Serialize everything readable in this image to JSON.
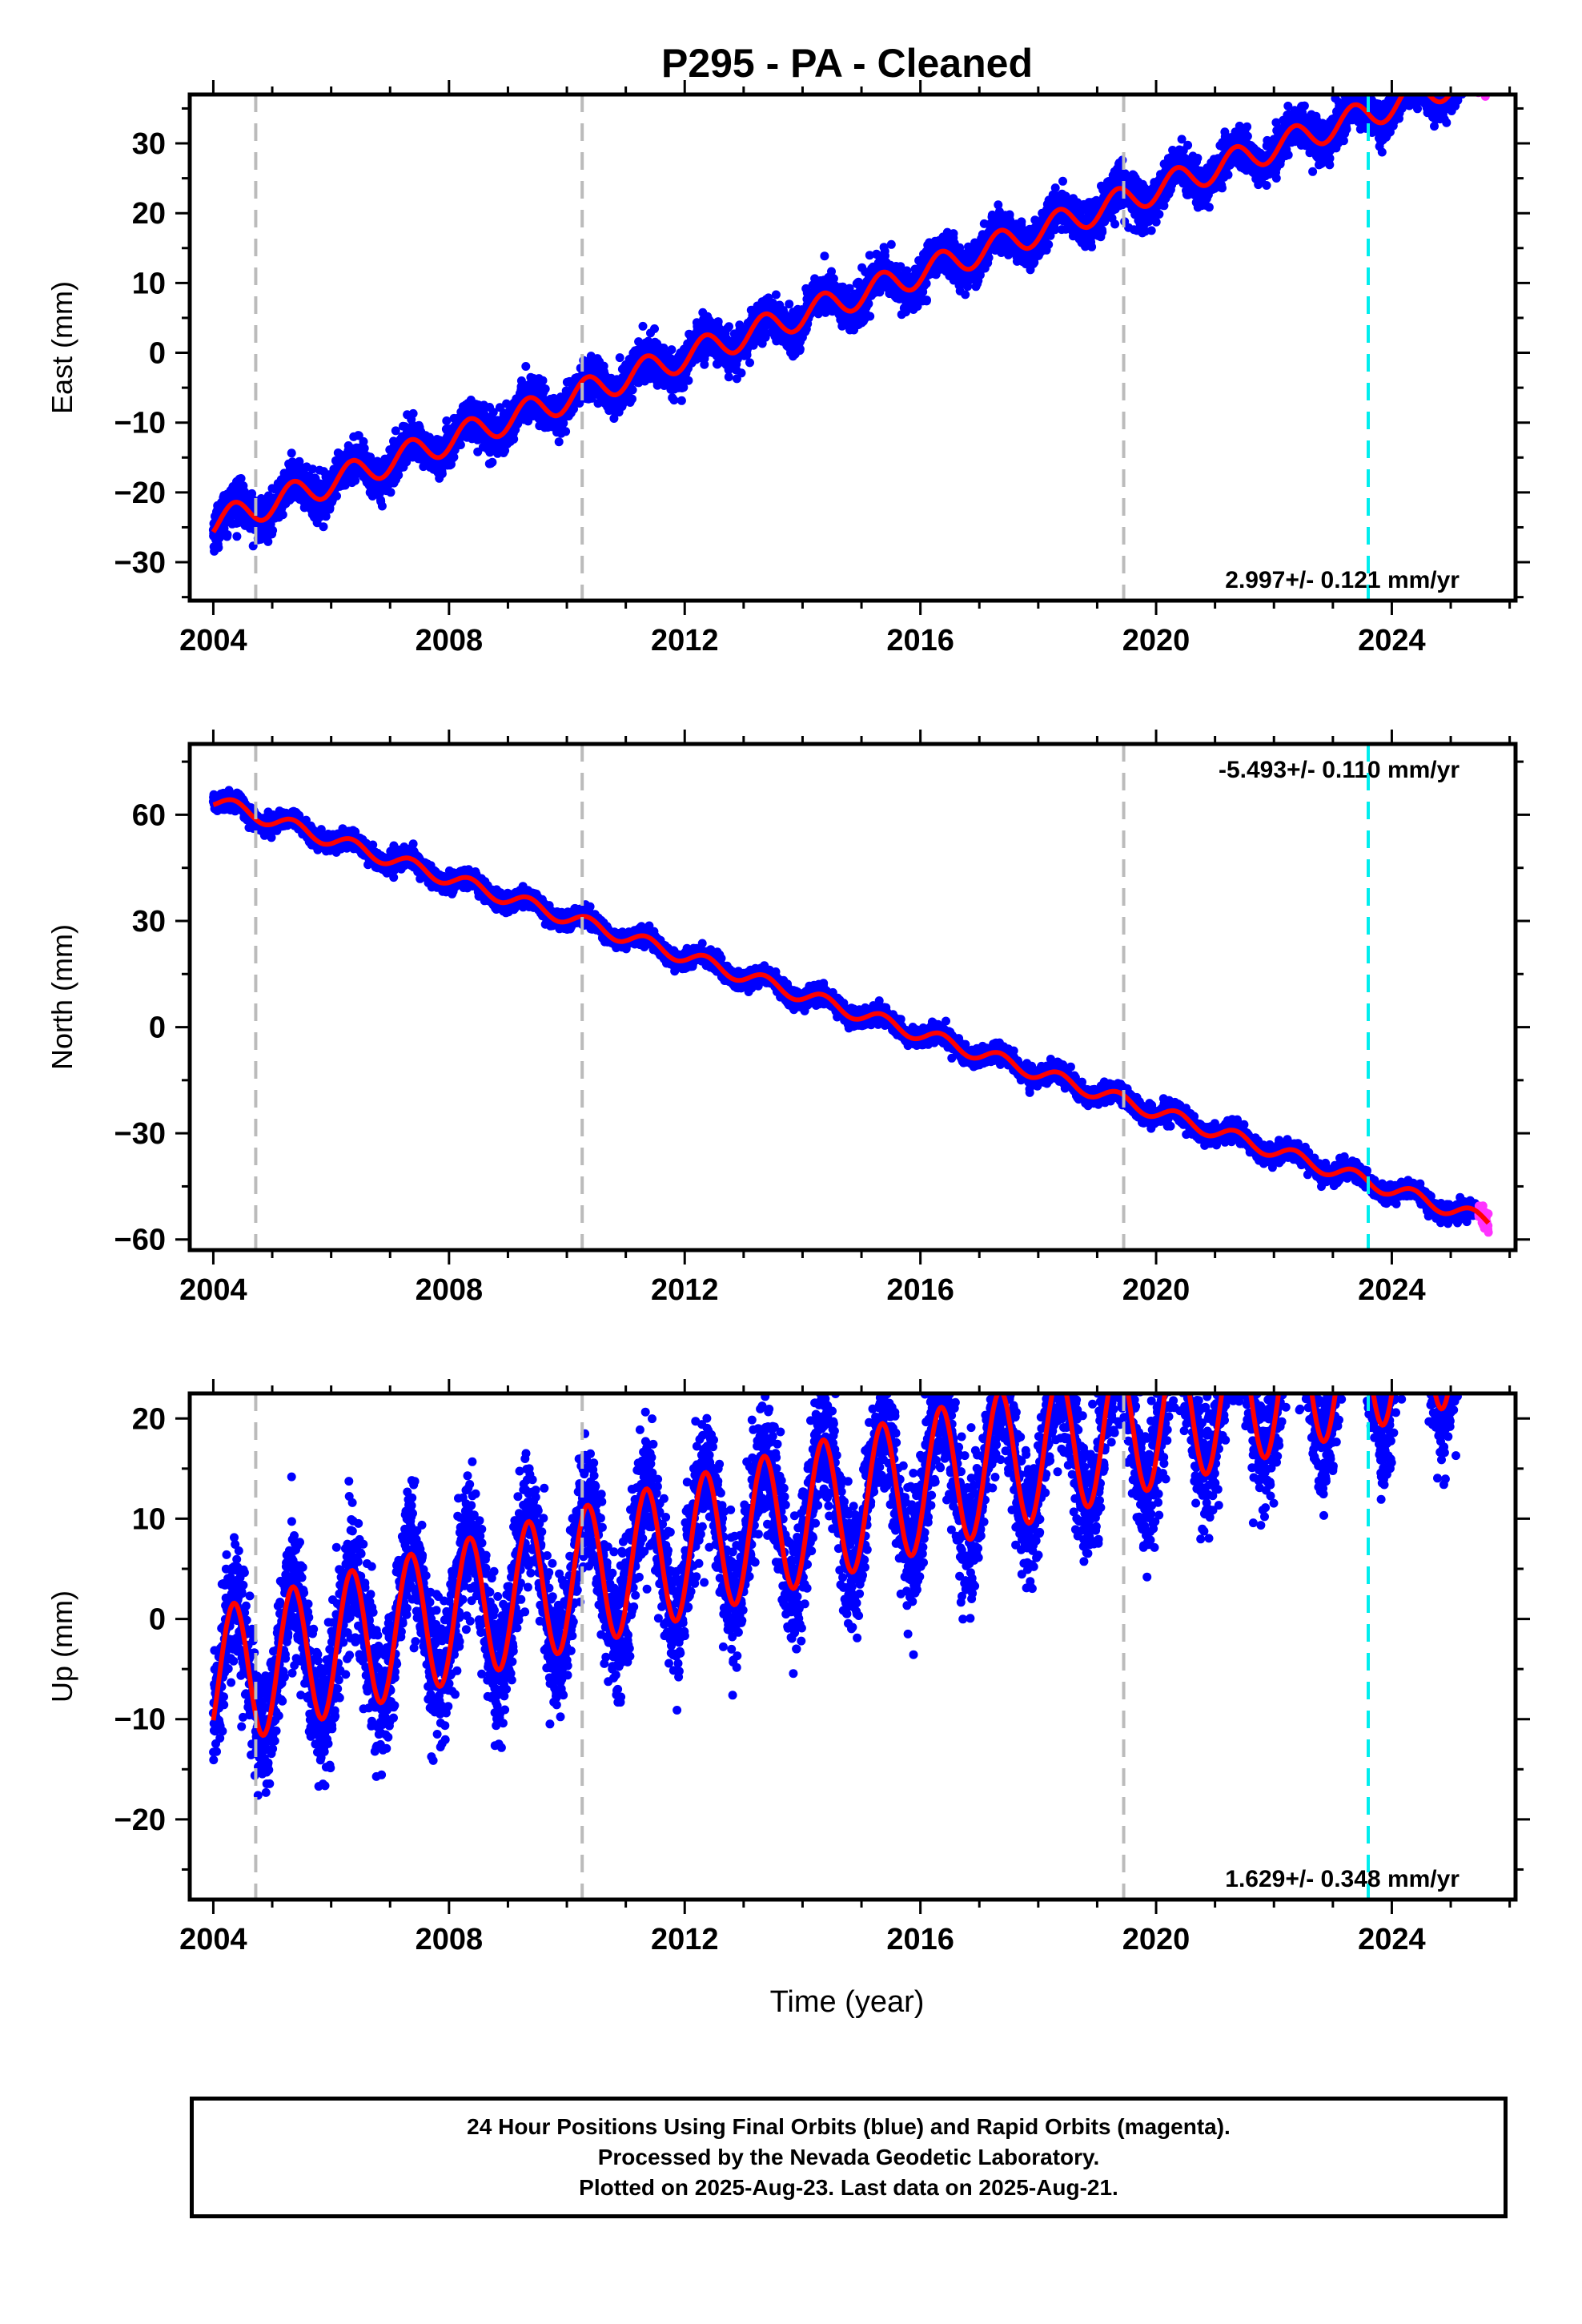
{
  "title": "P295  - PA - Cleaned",
  "xlabel": "Time (year)",
  "colors": {
    "final_orbits": "#0000ff",
    "rapid_orbits": "#ff33ff",
    "model": "#ff0000",
    "event_line": "#bbbbbb",
    "recent_event_line": "#00eeee"
  },
  "chart_data": [
    {
      "type": "scatter",
      "ylabel": "East (mm)",
      "rate_label": "2.997+/- 0.121 mm/yr",
      "xlim": [
        2003.6,
        2026.1
      ],
      "ylim": [
        -35.5,
        37
      ],
      "xticks": [
        2004,
        2008,
        2012,
        2016,
        2020,
        2024
      ],
      "yticks": [
        -30,
        -20,
        -10,
        0,
        10,
        20,
        30
      ],
      "rate_mm_per_yr": 2.997,
      "offset_at_2004": -24.5,
      "annual_amplitude_mm": 2.0,
      "noise_mm": 1.4,
      "event_lines": [
        2004.72,
        2010.26,
        2019.45
      ],
      "recent_event_lines": [
        2023.6
      ],
      "series": [
        {
          "name": "Final Orbits",
          "x_range": [
            2004.0,
            2025.45
          ],
          "samples_per_year": 365
        },
        {
          "name": "Rapid Orbits",
          "x_range": [
            2025.47,
            2025.64
          ],
          "samples_per_year": 365
        }
      ]
    },
    {
      "type": "scatter",
      "ylabel": "North (mm)",
      "rate_label": "-5.493+/- 0.110 mm/yr",
      "xlim": [
        2003.6,
        2026.1
      ],
      "ylim": [
        -63,
        80
      ],
      "xticks": [
        2004,
        2008,
        2012,
        2016,
        2020,
        2024
      ],
      "yticks": [
        -60,
        -30,
        0,
        30,
        60
      ],
      "rate_mm_per_yr": -5.493,
      "offset_at_2004": 64.0,
      "annual_amplitude_mm": 2.0,
      "noise_mm": 1.2,
      "event_lines": [
        2004.72,
        2010.26,
        2019.45
      ],
      "recent_event_lines": [
        2023.6
      ],
      "series": [
        {
          "name": "Final Orbits",
          "x_range": [
            2004.0,
            2025.45
          ],
          "samples_per_year": 365
        },
        {
          "name": "Rapid Orbits",
          "x_range": [
            2025.47,
            2025.64
          ],
          "samples_per_year": 365
        }
      ]
    },
    {
      "type": "scatter",
      "ylabel": "Up (mm)",
      "rate_label": "1.629+/- 0.348 mm/yr",
      "xlim": [
        2003.6,
        2026.1
      ],
      "ylim": [
        -28,
        22.5
      ],
      "xticks": [
        2004,
        2008,
        2012,
        2016,
        2020,
        2024
      ],
      "yticks": [
        -20,
        -10,
        0,
        10,
        20
      ],
      "rate_mm_per_yr": 1.629,
      "offset_at_2004": -6.0,
      "annual_amplitude_mm": 7.0,
      "noise_mm": 3.2,
      "event_lines": [
        2004.72,
        2010.26,
        2019.45
      ],
      "recent_event_lines": [
        2023.6
      ],
      "series": [
        {
          "name": "Final Orbits",
          "x_range": [
            2004.0,
            2025.45
          ],
          "samples_per_year": 365
        },
        {
          "name": "Rapid Orbits",
          "x_range": [
            2025.47,
            2025.64
          ],
          "samples_per_year": 365
        }
      ]
    }
  ],
  "caption": {
    "line1": "24 Hour Positions Using Final Orbits (blue) and Rapid Orbits (magenta).",
    "line2": "Processed by the Nevada Geodetic Laboratory.",
    "line3": "Plotted on 2025-Aug-23. Last data on 2025-Aug-21."
  }
}
